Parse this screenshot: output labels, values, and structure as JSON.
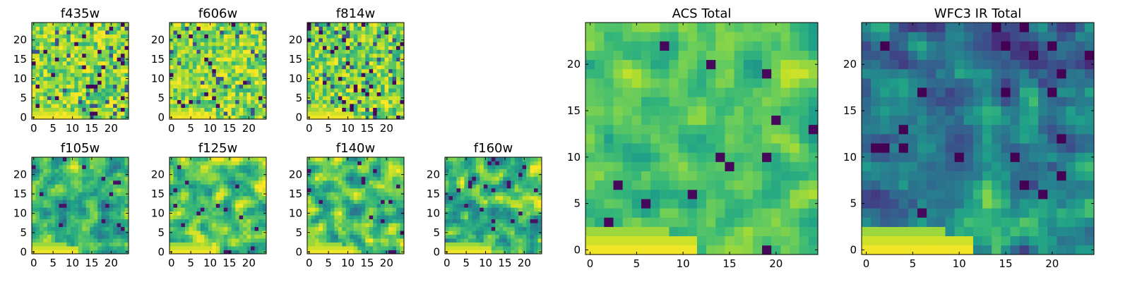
{
  "chart_data": [
    {
      "id": "f435w",
      "type": "heatmap",
      "title": "f435w",
      "grid_size": 25,
      "colormap": "viridis",
      "xticks": [
        0,
        5,
        10,
        15,
        20
      ],
      "yticks": [
        0,
        5,
        10,
        15,
        20
      ],
      "pattern": "speckle",
      "base_level": 0.8
    },
    {
      "id": "f606w",
      "type": "heatmap",
      "title": "f606w",
      "grid_size": 25,
      "colormap": "viridis",
      "xticks": [
        0,
        5,
        10,
        15,
        20
      ],
      "yticks": [
        0,
        5,
        10,
        15,
        20
      ],
      "pattern": "speckle",
      "base_level": 0.8
    },
    {
      "id": "f814w",
      "type": "heatmap",
      "title": "f814w",
      "grid_size": 25,
      "colormap": "viridis",
      "xticks": [
        0,
        5,
        10,
        15,
        20
      ],
      "yticks": [
        0,
        5,
        10,
        15,
        20
      ],
      "pattern": "speckle",
      "base_level": 0.78
    },
    {
      "id": "f105w",
      "type": "heatmap",
      "title": "f105w",
      "grid_size": 25,
      "colormap": "viridis",
      "xticks": [
        0,
        5,
        10,
        15,
        20
      ],
      "yticks": [
        0,
        5,
        10,
        15,
        20
      ],
      "pattern": "smooth",
      "base_level": 0.62
    },
    {
      "id": "f125w",
      "type": "heatmap",
      "title": "f125w",
      "grid_size": 25,
      "colormap": "viridis",
      "xticks": [
        0,
        5,
        10,
        15,
        20
      ],
      "yticks": [
        0,
        5,
        10,
        15,
        20
      ],
      "pattern": "smooth",
      "base_level": 0.72
    },
    {
      "id": "f140w",
      "type": "heatmap",
      "title": "f140w",
      "grid_size": 25,
      "colormap": "viridis",
      "xticks": [
        0,
        5,
        10,
        15,
        20
      ],
      "yticks": [
        0,
        5,
        10,
        15,
        20
      ],
      "pattern": "smooth",
      "base_level": 0.7
    },
    {
      "id": "f160w",
      "type": "heatmap",
      "title": "f160w",
      "grid_size": 25,
      "colormap": "viridis",
      "xticks": [
        0,
        5,
        10,
        15,
        20
      ],
      "yticks": [
        0,
        5,
        10,
        15,
        20
      ],
      "pattern": "smooth",
      "base_level": 0.66
    },
    {
      "id": "acs-total",
      "type": "heatmap",
      "title": "ACS Total",
      "grid_size": 25,
      "colormap": "viridis",
      "xticks": [
        0,
        5,
        10,
        15,
        20
      ],
      "yticks": [
        0,
        5,
        10,
        15,
        20
      ],
      "pattern": "patchy",
      "base_level": 0.72
    },
    {
      "id": "wfc3-ir-total",
      "type": "heatmap",
      "title": "WFC3 IR Total",
      "grid_size": 25,
      "colormap": "viridis",
      "xticks": [
        0,
        5,
        10,
        15,
        20
      ],
      "yticks": [
        0,
        5,
        10,
        15,
        20
      ],
      "pattern": "smooth-dark-top",
      "base_level": 0.5
    }
  ]
}
